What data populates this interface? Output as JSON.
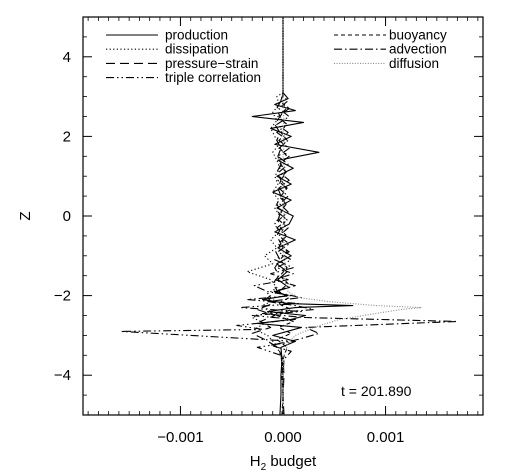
{
  "chart_data": {
    "type": "line",
    "title": "",
    "xlabel": "H",
    "xlabel_subscript": "2",
    "xlabel_suffix": " budget",
    "ylabel": "Z",
    "xlim": [
      -0.00195,
      0.00195
    ],
    "ylim": [
      -5,
      5
    ],
    "x_ticks": [
      -0.001,
      0.0,
      0.001
    ],
    "x_tick_labels": [
      "−0.001",
      "0.000",
      "0.001"
    ],
    "y_ticks": [
      -4,
      -2,
      0,
      2,
      4
    ],
    "y_tick_labels": [
      "−4",
      "−2",
      "0",
      "2",
      "4"
    ],
    "grid": false,
    "legend_placement": "top",
    "annotation": "t = 201.890",
    "series": [
      {
        "name": "production",
        "style": "solid",
        "color": "#000000",
        "points": [
          [
            -5,
            -3e-05
          ],
          [
            -4.5,
            -2e-05
          ],
          [
            -4,
            -2e-05
          ],
          [
            -3.6,
            -1e-05
          ],
          [
            -3.3,
            -2e-05
          ],
          [
            -3.15,
            0.00012
          ],
          [
            -3.0,
            -0.0001
          ],
          [
            -2.9,
            4e-05
          ],
          [
            -2.8,
            0.00018
          ],
          [
            -2.7,
            -0.00025
          ],
          [
            -2.6,
            8e-05
          ],
          [
            -2.5,
            0.00022
          ],
          [
            -2.4,
            -0.00015
          ],
          [
            -2.3,
            0.00012
          ],
          [
            -2.25,
            0.00068
          ],
          [
            -2.2,
            5e-05
          ],
          [
            -2.1,
            -0.0002
          ],
          [
            -2.0,
            5e-05
          ],
          [
            -1.9,
            -8e-05
          ],
          [
            -1.8,
            6e-05
          ],
          [
            -1.6,
            -5e-05
          ],
          [
            -1.4,
            4e-05
          ],
          [
            -1.2,
            -6e-05
          ],
          [
            -1.0,
            8e-05
          ],
          [
            -0.8,
            -5e-05
          ],
          [
            -0.6,
            0.00012
          ],
          [
            -0.4,
            -8e-05
          ],
          [
            -0.2,
            6e-05
          ],
          [
            0.0,
            0.0001
          ],
          [
            0.2,
            -6e-05
          ],
          [
            0.4,
            8e-05
          ],
          [
            0.6,
            -0.0001
          ],
          [
            0.8,
            8e-05
          ],
          [
            1.0,
            -6e-05
          ],
          [
            1.2,
            0.0001
          ],
          [
            1.4,
            -5e-05
          ],
          [
            1.6,
            0.00035
          ],
          [
            1.8,
            -8e-05
          ],
          [
            2.0,
            8e-05
          ],
          [
            2.2,
            -0.00012
          ],
          [
            2.35,
            0.0002
          ],
          [
            2.5,
            -0.0003
          ],
          [
            2.65,
            0.00012
          ],
          [
            2.8,
            -8e-05
          ],
          [
            2.95,
            5e-05
          ],
          [
            3.1,
            0.0
          ],
          [
            3.5,
            0.0
          ],
          [
            4.0,
            0.0
          ],
          [
            4.5,
            0.0
          ],
          [
            5,
            0.0
          ]
        ]
      },
      {
        "name": "dissipation",
        "style": "dotted",
        "color": "#000000",
        "points": [
          [
            -5,
            0.0
          ],
          [
            -4,
            0.0
          ],
          [
            -3.5,
            -2e-05
          ],
          [
            -3.2,
            -8e-05
          ],
          [
            -3.0,
            -0.00015
          ],
          [
            -2.85,
            -0.00028
          ],
          [
            -2.7,
            -0.00018
          ],
          [
            -2.55,
            -0.0003
          ],
          [
            -2.4,
            -0.00012
          ],
          [
            -2.25,
            -0.0002
          ],
          [
            -2.1,
            -8e-05
          ],
          [
            -1.95,
            -0.00015
          ],
          [
            -1.8,
            -6e-05
          ],
          [
            -1.6,
            -0.00012
          ],
          [
            -1.4,
            -0.00035
          ],
          [
            -1.2,
            -0.0001
          ],
          [
            -1.0,
            -0.00018
          ],
          [
            -0.8,
            -6e-05
          ],
          [
            -0.6,
            -0.00012
          ],
          [
            -0.4,
            -4e-05
          ],
          [
            -0.2,
            -8e-05
          ],
          [
            0.0,
            -3e-05
          ],
          [
            0.2,
            -8e-05
          ],
          [
            0.4,
            -4e-05
          ],
          [
            0.6,
            -0.0001
          ],
          [
            0.8,
            -5e-05
          ],
          [
            1.0,
            -8e-05
          ],
          [
            1.2,
            -3e-05
          ],
          [
            1.4,
            -6e-05
          ],
          [
            1.6,
            -0.0001
          ],
          [
            1.8,
            -4e-05
          ],
          [
            2.0,
            -8e-05
          ],
          [
            2.2,
            -0.00012
          ],
          [
            2.4,
            -6e-05
          ],
          [
            2.6,
            -0.0001
          ],
          [
            2.8,
            -4e-05
          ],
          [
            3.0,
            -6e-05
          ],
          [
            3.1,
            0.0
          ],
          [
            4,
            0.0
          ],
          [
            5,
            0.0
          ]
        ]
      },
      {
        "name": "pressure−strain",
        "style": "longdash",
        "color": "#000000",
        "points": [
          [
            -5,
            1e-05
          ],
          [
            -4.5,
            0.0
          ],
          [
            -4,
            1e-05
          ],
          [
            -3.6,
            0.0
          ],
          [
            -3.3,
            -5e-05
          ],
          [
            -3.1,
            -0.00018
          ],
          [
            -2.95,
            -0.0003
          ],
          [
            -2.8,
            -0.00012
          ],
          [
            -2.65,
            -0.00022
          ],
          [
            -2.5,
            -8e-05
          ],
          [
            -2.35,
            -0.00025
          ],
          [
            -2.2,
            -0.0001
          ],
          [
            -2.05,
            -0.00015
          ],
          [
            -1.9,
            -5e-05
          ],
          [
            -1.7,
            -0.0001
          ],
          [
            -1.5,
            -4e-05
          ],
          [
            -1.3,
            -8e-05
          ],
          [
            -1.1,
            -3e-05
          ],
          [
            -0.9,
            -7e-05
          ],
          [
            -0.7,
            -2e-05
          ],
          [
            -0.5,
            -6e-05
          ],
          [
            -0.3,
            -2e-05
          ],
          [
            -0.1,
            -5e-05
          ],
          [
            0.1,
            -2e-05
          ],
          [
            0.3,
            -6e-05
          ],
          [
            0.5,
            -2e-05
          ],
          [
            0.7,
            -5e-05
          ],
          [
            0.9,
            -2e-05
          ],
          [
            1.1,
            -6e-05
          ],
          [
            1.3,
            -2e-05
          ],
          [
            1.5,
            -5e-05
          ],
          [
            1.7,
            -2e-05
          ],
          [
            1.9,
            -6e-05
          ],
          [
            2.1,
            -3e-05
          ],
          [
            2.3,
            -8e-05
          ],
          [
            2.5,
            -3e-05
          ],
          [
            2.7,
            -6e-05
          ],
          [
            2.9,
            -2e-05
          ],
          [
            3.1,
            0.0
          ],
          [
            4,
            0.0
          ],
          [
            5,
            0.0
          ]
        ]
      },
      {
        "name": "triple correlation",
        "style": "dashdotdot",
        "color": "#000000",
        "points": [
          [
            -5,
            0.0
          ],
          [
            -4,
            0.0
          ],
          [
            -3.5,
            -2e-05
          ],
          [
            -3.3,
            -0.00025
          ],
          [
            -3.15,
            0.00012
          ],
          [
            -3.0,
            -0.0009
          ],
          [
            -2.9,
            -0.00158
          ],
          [
            -2.85,
            -0.0002
          ],
          [
            -2.75,
            -0.00045
          ],
          [
            -2.6,
            0.00012
          ],
          [
            -2.5,
            -0.0003
          ],
          [
            -2.4,
            0.00018
          ],
          [
            -2.3,
            -0.00042
          ],
          [
            -2.2,
            0.00015
          ],
          [
            -2.1,
            -0.00035
          ],
          [
            -2.0,
            8e-05
          ],
          [
            -1.9,
            -0.00015
          ],
          [
            -1.75,
            -0.00028
          ],
          [
            -1.6,
            5e-05
          ],
          [
            -1.45,
            -0.00012
          ],
          [
            -1.3,
            0.0001
          ],
          [
            -1.1,
            -8e-05
          ],
          [
            -0.9,
            6e-05
          ],
          [
            -0.7,
            -5e-05
          ],
          [
            -0.5,
            4e-05
          ],
          [
            -0.3,
            -6e-05
          ],
          [
            -0.1,
            4e-05
          ],
          [
            0.1,
            -5e-05
          ],
          [
            0.3,
            3e-05
          ],
          [
            0.5,
            -4e-05
          ],
          [
            0.7,
            3e-05
          ],
          [
            0.9,
            -5e-05
          ],
          [
            1.1,
            3e-05
          ],
          [
            1.3,
            -4e-05
          ],
          [
            1.5,
            6e-05
          ],
          [
            1.7,
            -4e-05
          ],
          [
            1.9,
            5e-05
          ],
          [
            2.1,
            -6e-05
          ],
          [
            2.3,
            4e-05
          ],
          [
            2.5,
            -5e-05
          ],
          [
            2.7,
            6e-05
          ],
          [
            2.9,
            -3e-05
          ],
          [
            3.0,
            0.0
          ],
          [
            4,
            0.0
          ],
          [
            5,
            0.0
          ]
        ]
      },
      {
        "name": "buoyancy",
        "style": "shortdash",
        "color": "#000000",
        "points": [
          [
            -5,
            -1e-05
          ],
          [
            -4.5,
            0.0
          ],
          [
            -4,
            -1e-05
          ],
          [
            -3.6,
            0.0
          ],
          [
            -3.3,
            4e-05
          ],
          [
            -3.1,
            -6e-05
          ],
          [
            -2.95,
            8e-05
          ],
          [
            -2.8,
            -4e-05
          ],
          [
            -2.65,
            0.0001
          ],
          [
            -2.5,
            -6e-05
          ],
          [
            -2.35,
            8e-05
          ],
          [
            -2.2,
            -5e-05
          ],
          [
            -2.05,
            6e-05
          ],
          [
            -1.9,
            -4e-05
          ],
          [
            -1.7,
            5e-05
          ],
          [
            -1.5,
            -3e-05
          ],
          [
            -1.3,
            4e-05
          ],
          [
            -1.1,
            -3e-05
          ],
          [
            -0.9,
            4e-05
          ],
          [
            -0.7,
            -2e-05
          ],
          [
            -0.5,
            3e-05
          ],
          [
            -0.3,
            -2e-05
          ],
          [
            -0.1,
            3e-05
          ],
          [
            0.1,
            -2e-05
          ],
          [
            0.3,
            3e-05
          ],
          [
            0.5,
            -2e-05
          ],
          [
            0.7,
            4e-05
          ],
          [
            0.9,
            -2e-05
          ],
          [
            1.1,
            3e-05
          ],
          [
            1.3,
            -2e-05
          ],
          [
            1.5,
            4e-05
          ],
          [
            1.7,
            -3e-05
          ],
          [
            1.9,
            4e-05
          ],
          [
            2.1,
            -2e-05
          ],
          [
            2.3,
            3e-05
          ],
          [
            2.5,
            -3e-05
          ],
          [
            2.7,
            3e-05
          ],
          [
            2.9,
            -2e-05
          ],
          [
            3.1,
            0.0
          ],
          [
            4,
            0.0
          ],
          [
            5,
            0.0
          ]
        ]
      },
      {
        "name": "advection",
        "style": "dashdot",
        "color": "#000000",
        "points": [
          [
            -5,
            0.0
          ],
          [
            -4,
            0.0
          ],
          [
            -3.6,
            1e-05
          ],
          [
            -3.4,
            8e-05
          ],
          [
            -3.25,
            -0.00012
          ],
          [
            -3.1,
            0.00015
          ],
          [
            -2.95,
            0.00035
          ],
          [
            -2.8,
            0.00022
          ],
          [
            -2.65,
            0.0017
          ],
          [
            -2.55,
            0.0002
          ],
          [
            -2.45,
            -0.0002
          ],
          [
            -2.35,
            0.0003
          ],
          [
            -2.25,
            0.00012
          ],
          [
            -2.15,
            -0.00015
          ],
          [
            -2.05,
            0.00018
          ],
          [
            -1.9,
            -0.0001
          ],
          [
            -1.75,
            0.00012
          ],
          [
            -1.6,
            -8e-05
          ],
          [
            -1.45,
            0.0001
          ],
          [
            -1.3,
            -6e-05
          ],
          [
            -1.1,
            8e-05
          ],
          [
            -0.9,
            -5e-05
          ],
          [
            -0.7,
            6e-05
          ],
          [
            -0.5,
            -4e-05
          ],
          [
            -0.3,
            5e-05
          ],
          [
            -0.1,
            -4e-05
          ],
          [
            0.1,
            5e-05
          ],
          [
            0.3,
            -3e-05
          ],
          [
            0.5,
            5e-05
          ],
          [
            0.7,
            -4e-05
          ],
          [
            0.9,
            6e-05
          ],
          [
            1.1,
            -4e-05
          ],
          [
            1.3,
            5e-05
          ],
          [
            1.5,
            -5e-05
          ],
          [
            1.7,
            6e-05
          ],
          [
            1.9,
            -4e-05
          ],
          [
            2.1,
            5e-05
          ],
          [
            2.3,
            -6e-05
          ],
          [
            2.5,
            6e-05
          ],
          [
            2.7,
            -4e-05
          ],
          [
            2.9,
            5e-05
          ],
          [
            3.0,
            0.0
          ],
          [
            4,
            0.0
          ],
          [
            5,
            0.0
          ]
        ]
      },
      {
        "name": "diffusion",
        "style": "finedot",
        "color": "#888888",
        "points": [
          [
            -5,
            0.0
          ],
          [
            -4,
            0.0
          ],
          [
            -3.5,
            1e-05
          ],
          [
            -3.2,
            5e-05
          ],
          [
            -3.0,
            0.00012
          ],
          [
            -2.8,
            0.0003
          ],
          [
            -2.6,
            0.00055
          ],
          [
            -2.45,
            0.0009
          ],
          [
            -2.35,
            0.00115
          ],
          [
            -2.3,
            0.00135
          ],
          [
            -2.25,
            0.0009
          ],
          [
            -2.15,
            0.00045
          ],
          [
            -2.05,
            0.00015
          ],
          [
            -1.9,
            5e-05
          ],
          [
            -1.7,
            3e-05
          ],
          [
            -1.5,
            1e-05
          ],
          [
            -1.2,
            2e-05
          ],
          [
            -0.9,
            0.0
          ],
          [
            -0.6,
            1e-05
          ],
          [
            -0.3,
            0.0
          ],
          [
            0.0,
            1e-05
          ],
          [
            0.3,
            0.0
          ],
          [
            0.6,
            1e-05
          ],
          [
            0.9,
            0.0
          ],
          [
            1.2,
            1e-05
          ],
          [
            1.5,
            0.0
          ],
          [
            1.8,
            1e-05
          ],
          [
            2.1,
            0.0
          ],
          [
            2.4,
            1e-05
          ],
          [
            2.7,
            0.0
          ],
          [
            3.0,
            0.0
          ],
          [
            4,
            0.0
          ],
          [
            5,
            0.0
          ]
        ]
      }
    ]
  }
}
